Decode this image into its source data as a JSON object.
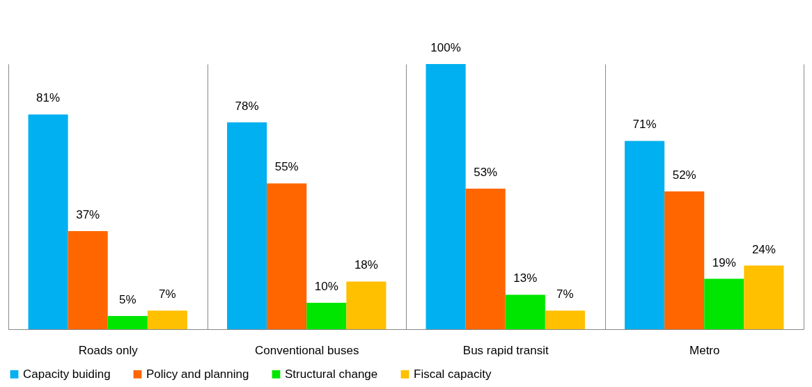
{
  "chart_data": {
    "type": "bar",
    "categories": [
      "Roads only",
      "Conventional buses",
      "Bus rapid transit",
      "Metro"
    ],
    "series": [
      {
        "name": "Capacity buiding",
        "color": "#00b0f0",
        "values": [
          81,
          78,
          100,
          71
        ],
        "value_labels": [
          "81%",
          "78%",
          "100%",
          "71%"
        ]
      },
      {
        "name": "Policy and planning",
        "color": "#ff6600",
        "values": [
          37,
          55,
          53,
          52
        ],
        "value_labels": [
          "37%",
          "55%",
          "53%",
          "52%"
        ]
      },
      {
        "name": "Structural change",
        "color": "#00e600",
        "values": [
          5,
          10,
          13,
          19
        ],
        "value_labels": [
          "5%",
          "10%",
          "13%",
          "19%"
        ]
      },
      {
        "name": "Fiscal capacity",
        "color": "#ffc000",
        "values": [
          7,
          18,
          7,
          24
        ],
        "value_labels": [
          "7%",
          "18%",
          "7%",
          "24%"
        ]
      }
    ],
    "grid": "x",
    "legend": "bottom"
  }
}
